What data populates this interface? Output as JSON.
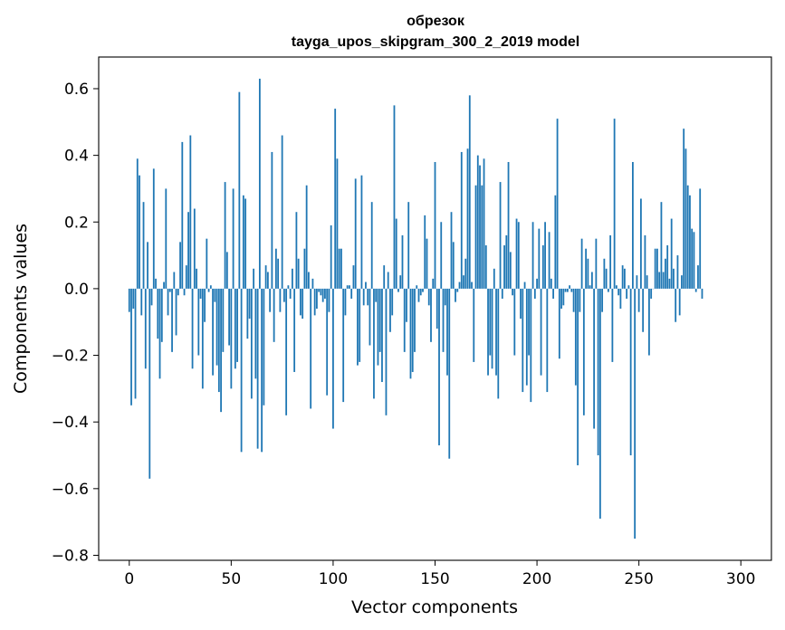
{
  "chart_data": {
    "type": "bar",
    "title_lines": [
      "обрезок",
      "tayga_upos_skipgram_300_2_2019 model"
    ],
    "xlabel": "Vector components",
    "ylabel": "Components values",
    "xlim": [
      -15,
      315
    ],
    "ylim": [
      -0.815,
      0.695
    ],
    "xticks": [
      0,
      50,
      100,
      150,
      200,
      250,
      300
    ],
    "xtick_labels": [
      "0",
      "50",
      "100",
      "150",
      "200",
      "250",
      "300"
    ],
    "yticks": [
      -0.8,
      -0.6,
      -0.4,
      -0.2,
      0.0,
      0.2,
      0.4,
      0.6
    ],
    "ytick_labels": [
      "−0.8",
      "−0.6",
      "−0.4",
      "−0.2",
      "0.0",
      "0.2",
      "0.4",
      "0.6"
    ],
    "bar_color": "#1f77b4",
    "grid": false,
    "values": [
      -0.07,
      -0.35,
      -0.06,
      -0.33,
      0.39,
      0.34,
      -0.08,
      0.26,
      -0.24,
      0.14,
      -0.57,
      -0.05,
      0.36,
      0.03,
      -0.15,
      -0.27,
      -0.16,
      0.02,
      0.3,
      -0.08,
      -0.01,
      -0.19,
      0.05,
      -0.14,
      -0.02,
      0.14,
      0.44,
      -0.02,
      0.07,
      0.23,
      0.46,
      -0.24,
      0.24,
      0.06,
      -0.2,
      -0.03,
      -0.3,
      -0.1,
      0.15,
      -0.01,
      0.01,
      -0.26,
      -0.04,
      -0.23,
      -0.31,
      -0.37,
      -0.19,
      0.32,
      0.11,
      -0.17,
      -0.3,
      0.3,
      -0.24,
      -0.22,
      0.59,
      -0.49,
      0.28,
      0.27,
      -0.15,
      -0.09,
      -0.33,
      0.06,
      -0.27,
      -0.48,
      0.63,
      -0.49,
      -0.35,
      0.07,
      0.05,
      -0.07,
      0.41,
      -0.16,
      0.12,
      0.09,
      -0.07,
      0.46,
      -0.04,
      -0.38,
      0.01,
      -0.03,
      0.06,
      -0.25,
      0.23,
      0.09,
      -0.08,
      -0.09,
      0.12,
      0.31,
      0.05,
      -0.36,
      0.03,
      -0.08,
      -0.06,
      -0.01,
      -0.02,
      -0.04,
      -0.03,
      -0.32,
      -0.07,
      0.19,
      -0.42,
      0.54,
      0.39,
      0.12,
      0.12,
      -0.34,
      -0.08,
      0.01,
      0.01,
      -0.03,
      0.07,
      0.33,
      -0.23,
      -0.22,
      0.34,
      -0.05,
      0.02,
      -0.05,
      -0.17,
      0.26,
      -0.33,
      -0.04,
      -0.23,
      -0.19,
      -0.28,
      0.07,
      -0.38,
      0.05,
      -0.13,
      -0.08,
      0.55,
      0.21,
      -0.01,
      0.04,
      0.16,
      -0.19,
      -0.1,
      0.26,
      -0.27,
      -0.25,
      -0.19,
      0.01,
      -0.04,
      -0.02,
      -0.01,
      0.22,
      0.15,
      -0.05,
      -0.16,
      0.03,
      0.38,
      -0.12,
      -0.47,
      0.2,
      -0.19,
      -0.05,
      -0.26,
      -0.51,
      0.23,
      0.14,
      -0.04,
      -0.01,
      0.02,
      0.41,
      0.04,
      0.09,
      0.42,
      0.58,
      0.02,
      -0.22,
      0.31,
      0.4,
      0.37,
      0.31,
      0.39,
      0.13,
      -0.26,
      -0.2,
      -0.24,
      0.06,
      -0.26,
      -0.33,
      0.32,
      -0.03,
      0.13,
      0.16,
      0.38,
      0.11,
      -0.02,
      -0.2,
      0.21,
      0.2,
      -0.09,
      -0.31,
      0.02,
      -0.29,
      -0.2,
      -0.34,
      0.2,
      -0.03,
      0.03,
      0.18,
      -0.26,
      0.13,
      0.2,
      -0.31,
      0.17,
      0.03,
      -0.03,
      0.28,
      0.51,
      -0.21,
      -0.06,
      -0.05,
      -0.01,
      -0.01,
      0.01,
      -0.01,
      -0.07,
      -0.29,
      -0.53,
      -0.07,
      0.15,
      -0.38,
      0.12,
      0.09,
      0.01,
      0.05,
      -0.42,
      0.15,
      -0.5,
      -0.69,
      -0.07,
      0.09,
      0.06,
      -0.01,
      0.16,
      -0.22,
      0.51,
      0.01,
      -0.02,
      -0.06,
      0.07,
      0.06,
      -0.03,
      0.01,
      -0.5,
      0.38,
      -0.75,
      0.04,
      -0.07,
      0.27,
      -0.13,
      0.16,
      0.04,
      -0.2,
      -0.03,
      0.0,
      0.12,
      0.12,
      0.05,
      0.26,
      0.05,
      0.09,
      0.13,
      0.03,
      0.21,
      0.06,
      -0.1,
      0.1,
      -0.08,
      0.04,
      0.48,
      0.42,
      0.31,
      0.28,
      0.18,
      0.17,
      -0.01,
      0.07,
      0.3,
      -0.03
    ]
  }
}
